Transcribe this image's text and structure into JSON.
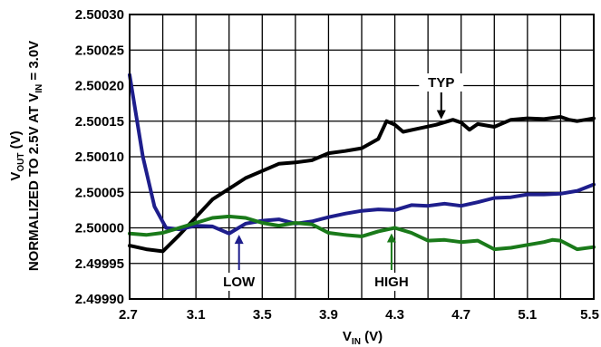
{
  "chart_data": {
    "type": "line",
    "title": "",
    "xlabel": {
      "main": "V",
      "sub": "IN",
      "unit": " (V)"
    },
    "ylabel": {
      "line1": {
        "main": "V",
        "sub": "OUT",
        "unit": " (V)"
      },
      "line2": {
        "pre": "NORMALIZED TO 2.5V AT V",
        "sub": "IN",
        "post": " = 3.0V"
      }
    },
    "xlim": [
      2.7,
      5.5
    ],
    "ylim": [
      2.4999,
      2.5003
    ],
    "xticks": [
      "2.7",
      "3.1",
      "3.5",
      "3.9",
      "4.3",
      "4.7",
      "5.1",
      "5.5"
    ],
    "yticks": [
      "2.49990",
      "2.49995",
      "2.50000",
      "2.50005",
      "2.50010",
      "2.50015",
      "2.50020",
      "2.50025",
      "2.50030"
    ],
    "grid": true,
    "series": [
      {
        "name": "TYP",
        "color": "#000000",
        "points": [
          [
            2.7,
            2.499975
          ],
          [
            2.8,
            2.49997
          ],
          [
            2.9,
            2.499967
          ],
          [
            3.0,
            2.49999
          ],
          [
            3.1,
            2.500015
          ],
          [
            3.2,
            2.50004
          ],
          [
            3.3,
            2.500055
          ],
          [
            3.4,
            2.50007
          ],
          [
            3.5,
            2.50008
          ],
          [
            3.6,
            2.50009
          ],
          [
            3.7,
            2.500092
          ],
          [
            3.8,
            2.500095
          ],
          [
            3.9,
            2.500105
          ],
          [
            4.0,
            2.500108
          ],
          [
            4.1,
            2.500112
          ],
          [
            4.2,
            2.500125
          ],
          [
            4.25,
            2.50015
          ],
          [
            4.3,
            2.500145
          ],
          [
            4.35,
            2.500135
          ],
          [
            4.45,
            2.50014
          ],
          [
            4.55,
            2.500145
          ],
          [
            4.65,
            2.500152
          ],
          [
            4.7,
            2.500148
          ],
          [
            4.75,
            2.500138
          ],
          [
            4.8,
            2.500146
          ],
          [
            4.9,
            2.500142
          ],
          [
            5.0,
            2.500152
          ],
          [
            5.1,
            2.500154
          ],
          [
            5.2,
            2.500153
          ],
          [
            5.3,
            2.500156
          ],
          [
            5.35,
            2.500152
          ],
          [
            5.4,
            2.50015
          ],
          [
            5.45,
            2.500152
          ],
          [
            5.5,
            2.500154
          ]
        ]
      },
      {
        "name": "LOW",
        "color": "#1e1e8c",
        "points": [
          [
            2.7,
            2.500215
          ],
          [
            2.78,
            2.5001
          ],
          [
            2.85,
            2.50003
          ],
          [
            2.92,
            2.5
          ],
          [
            3.0,
            2.499998
          ],
          [
            3.1,
            2.500003
          ],
          [
            3.2,
            2.500002
          ],
          [
            3.3,
            2.499992
          ],
          [
            3.4,
            2.500006
          ],
          [
            3.5,
            2.50001
          ],
          [
            3.6,
            2.500012
          ],
          [
            3.7,
            2.500006
          ],
          [
            3.8,
            2.500009
          ],
          [
            3.9,
            2.500015
          ],
          [
            4.0,
            2.50002
          ],
          [
            4.1,
            2.500024
          ],
          [
            4.2,
            2.500026
          ],
          [
            4.3,
            2.500025
          ],
          [
            4.4,
            2.500032
          ],
          [
            4.5,
            2.500031
          ],
          [
            4.6,
            2.500034
          ],
          [
            4.7,
            2.500031
          ],
          [
            4.8,
            2.500036
          ],
          [
            4.9,
            2.500042
          ],
          [
            5.0,
            2.500043
          ],
          [
            5.1,
            2.500047
          ],
          [
            5.2,
            2.500047
          ],
          [
            5.3,
            2.500048
          ],
          [
            5.4,
            2.500052
          ],
          [
            5.5,
            2.500061
          ]
        ]
      },
      {
        "name": "HIGH",
        "color": "#1a7a1a",
        "points": [
          [
            2.7,
            2.499992
          ],
          [
            2.8,
            2.49999
          ],
          [
            2.9,
            2.499993
          ],
          [
            3.0,
            2.5
          ],
          [
            3.1,
            2.500007
          ],
          [
            3.2,
            2.500014
          ],
          [
            3.3,
            2.500016
          ],
          [
            3.4,
            2.500014
          ],
          [
            3.5,
            2.500007
          ],
          [
            3.6,
            2.500003
          ],
          [
            3.7,
            2.500007
          ],
          [
            3.8,
            2.500005
          ],
          [
            3.9,
            2.499993
          ],
          [
            4.0,
            2.49999
          ],
          [
            4.1,
            2.499988
          ],
          [
            4.2,
            2.499995
          ],
          [
            4.3,
            2.5
          ],
          [
            4.4,
            2.499993
          ],
          [
            4.5,
            2.499982
          ],
          [
            4.6,
            2.499983
          ],
          [
            4.7,
            2.49998
          ],
          [
            4.8,
            2.499982
          ],
          [
            4.9,
            2.49997
          ],
          [
            5.0,
            2.499972
          ],
          [
            5.1,
            2.499976
          ],
          [
            5.2,
            2.49998
          ],
          [
            5.25,
            2.499983
          ],
          [
            5.3,
            2.499982
          ],
          [
            5.4,
            2.49997
          ],
          [
            5.5,
            2.499973
          ]
        ]
      }
    ],
    "annotations": [
      {
        "label": "TYP",
        "arrow_to": [
          4.58,
          2.500145
        ]
      },
      {
        "label": "LOW",
        "arrow_to": [
          3.36,
          2.499998
        ]
      },
      {
        "label": "HIGH",
        "arrow_to": [
          4.28,
          2.5
        ]
      }
    ]
  }
}
